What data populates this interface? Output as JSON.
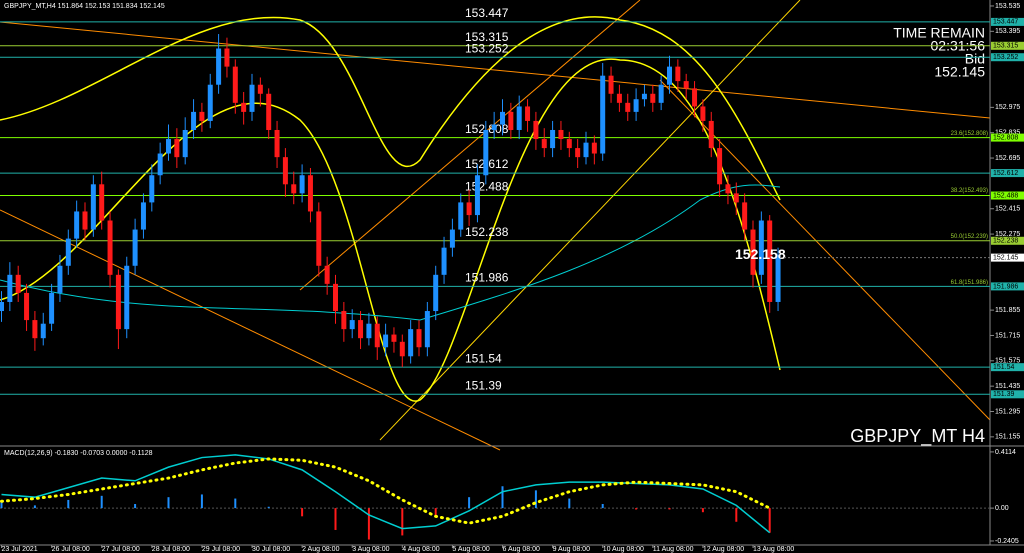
{
  "chart_data": {
    "type": "candlestick",
    "title": "GBPJPY_MT,H4  151.864 152.153 151.834 152.145",
    "watermark": "GBPJPY_MT H4",
    "up_color": "#1e90ff",
    "down_color": "#ff1a1a",
    "open": [
      151.85,
      151.9,
      152.05,
      151.95,
      151.8,
      151.7,
      151.78,
      151.95,
      152.1,
      152.25,
      152.4,
      152.3,
      152.55,
      152.35,
      152.05,
      151.75,
      152.1,
      152.3,
      152.45,
      152.6,
      152.72,
      152.8,
      152.7,
      152.85,
      152.95,
      152.9,
      153.1,
      153.3,
      153.2,
      153.0,
      152.95,
      153.1,
      153.05,
      152.85,
      152.7,
      152.55,
      152.5,
      152.6,
      152.4,
      152.1,
      152.0,
      151.85,
      151.75,
      151.8,
      151.7,
      151.78,
      151.65,
      151.72,
      151.68,
      151.6,
      151.75,
      151.65,
      151.85,
      152.05,
      152.2,
      152.3,
      152.45,
      152.38,
      152.6,
      152.85,
      152.88,
      152.95,
      152.85,
      152.98,
      152.9,
      152.8,
      152.75,
      152.85,
      152.8,
      152.75,
      152.7,
      152.78,
      152.72,
      153.15,
      153.05,
      153.0,
      152.95,
      153.02,
      153.05,
      153.0,
      153.1,
      153.2,
      153.12,
      153.08,
      152.98,
      152.9,
      152.75,
      152.55,
      152.5,
      152.45,
      152.3,
      152.05,
      152.35,
      151.9
    ],
    "high": [
      151.96,
      152.12,
      152.1,
      152.0,
      151.85,
      151.84,
      152.0,
      152.16,
      152.3,
      152.46,
      152.45,
      152.6,
      152.62,
      152.4,
      152.08,
      152.15,
      152.36,
      152.5,
      152.66,
      152.78,
      152.88,
      152.86,
      152.92,
      153.02,
      153.0,
      153.16,
      153.38,
      153.36,
      153.24,
      153.06,
      153.16,
      153.14,
      153.08,
      152.9,
      152.75,
      152.62,
      152.66,
      152.64,
      152.45,
      152.15,
      152.05,
      151.9,
      151.86,
      151.85,
      151.84,
      151.82,
      151.78,
      151.76,
      151.72,
      151.8,
      151.8,
      151.9,
      152.1,
      152.26,
      152.36,
      152.5,
      152.52,
      152.66,
      152.9,
      152.95,
      153.02,
      153.0,
      153.04,
      153.02,
      152.95,
      152.86,
      152.9,
      152.9,
      152.84,
      152.8,
      152.84,
      152.82,
      153.22,
      153.2,
      153.1,
      153.05,
      153.08,
      153.1,
      153.1,
      153.15,
      153.26,
      153.24,
      153.16,
      153.12,
      153.02,
      152.95,
      152.8,
      152.6,
      152.56,
      152.5,
      152.35,
      152.4,
      152.38,
      152.2
    ],
    "low": [
      151.79,
      151.85,
      151.9,
      151.74,
      151.63,
      151.66,
      151.74,
      151.9,
      152.05,
      152.2,
      152.24,
      152.26,
      152.3,
      151.98,
      151.64,
      151.7,
      152.05,
      152.25,
      152.4,
      152.55,
      152.68,
      152.64,
      152.66,
      152.8,
      152.84,
      152.86,
      153.05,
      153.14,
      152.94,
      152.88,
      152.9,
      152.98,
      152.8,
      152.64,
      152.48,
      152.44,
      152.45,
      152.34,
      152.04,
      151.94,
      151.78,
      151.68,
      151.7,
      151.64,
      151.66,
      151.58,
      151.6,
      151.62,
      151.54,
      151.56,
      151.6,
      151.6,
      151.8,
      152.0,
      152.15,
      152.26,
      152.32,
      152.34,
      152.55,
      152.8,
      152.82,
      152.8,
      152.8,
      152.84,
      152.74,
      152.7,
      152.7,
      152.74,
      152.7,
      152.64,
      152.66,
      152.66,
      152.68,
      153.0,
      152.95,
      152.9,
      152.9,
      152.98,
      152.95,
      152.96,
      153.05,
      153.06,
      153.02,
      152.92,
      152.84,
      152.7,
      152.48,
      152.44,
      152.38,
      152.24,
      151.98,
      152.0,
      151.84,
      151.85
    ],
    "close": [
      151.9,
      152.05,
      151.95,
      151.8,
      151.7,
      151.78,
      151.95,
      152.1,
      152.25,
      152.4,
      152.3,
      152.55,
      152.35,
      152.05,
      151.75,
      152.1,
      152.3,
      152.45,
      152.6,
      152.72,
      152.8,
      152.7,
      152.85,
      152.95,
      152.9,
      153.1,
      153.3,
      153.2,
      153.0,
      152.95,
      153.1,
      153.05,
      152.85,
      152.7,
      152.55,
      152.5,
      152.6,
      152.4,
      152.1,
      152.0,
      151.85,
      151.75,
      151.8,
      151.7,
      151.78,
      151.65,
      151.72,
      151.68,
      151.6,
      151.75,
      151.65,
      151.85,
      152.05,
      152.2,
      152.3,
      152.45,
      152.38,
      152.6,
      152.85,
      152.88,
      152.95,
      152.85,
      152.98,
      152.9,
      152.8,
      152.75,
      152.85,
      152.8,
      152.75,
      152.7,
      152.78,
      152.72,
      153.15,
      153.05,
      153.0,
      152.95,
      153.02,
      153.05,
      153.0,
      153.1,
      153.2,
      153.12,
      153.08,
      152.98,
      152.9,
      152.75,
      152.55,
      152.5,
      152.45,
      152.3,
      152.05,
      152.35,
      151.9,
      152.158
    ],
    "ylim": [
      151.11,
      153.568
    ],
    "yticks": [
      153.535,
      153.395,
      152.975,
      152.835,
      152.695,
      152.415,
      152.275,
      151.855,
      151.715,
      151.575,
      151.435,
      151.295,
      151.155
    ],
    "xticks": [
      {
        "value": 0,
        "label": "23 Jul 2021"
      },
      {
        "value": 6,
        "label": "26 Jul 08:00"
      },
      {
        "value": 12,
        "label": "27 Jul 08:00"
      },
      {
        "value": 18,
        "label": "28 Jul 08:00"
      },
      {
        "value": 24,
        "label": "29 Jul 08:00"
      },
      {
        "value": 30,
        "label": "30 Jul 08:00"
      },
      {
        "value": 36,
        "label": "2 Aug 08:00"
      },
      {
        "value": 42,
        "label": "3 Aug 08:00"
      },
      {
        "value": 48,
        "label": "4 Aug 08:00"
      },
      {
        "value": 54,
        "label": "5 Aug 08:00"
      },
      {
        "value": 60,
        "label": "6 Aug 08:00"
      },
      {
        "value": 66,
        "label": "9 Aug 08:00"
      },
      {
        "value": 72,
        "label": "10 Aug 08:00"
      },
      {
        "value": 78,
        "label": "11 Aug 08:00"
      },
      {
        "value": 84,
        "label": "12 Aug 08:00"
      },
      {
        "value": 90,
        "label": "13 Aug 08:00"
      }
    ],
    "levels": [
      153.447,
      153.315,
      153.252,
      152.808,
      152.612,
      152.488,
      152.238,
      151.986,
      151.54,
      151.39
    ],
    "level_colors": [
      "#20b2aa",
      "#9acd32",
      "#20b2aa",
      "#7fff00",
      "#20b2aa",
      "#7fff00",
      "#9acd32",
      "#20b2aa",
      "#20b2aa",
      "#20b2aa"
    ],
    "fib": [
      {
        "value": 152.808,
        "label": "23.6(152.808)"
      },
      {
        "value": 152.493,
        "label": "38.2(152.493)"
      },
      {
        "value": 152.239,
        "label": "50.0(152.239)"
      },
      {
        "value": 151.986,
        "label": "61.8(151.986)"
      }
    ],
    "price_label": 152.158,
    "time_remain_label": "TIME REMAIN",
    "time_remain": "02:31:56",
    "bid_label": "Bid",
    "bid": 152.145,
    "macd": {
      "label": "MACD(12,26,9) -0.1830 -0.0703 0.0000 -0.1128",
      "main_color": "#00ced1",
      "signal_color": "#ffff00",
      "x": [
        0,
        4,
        8,
        12,
        16,
        20,
        24,
        28,
        32,
        36,
        40,
        44,
        48,
        52,
        56,
        60,
        64,
        68,
        72,
        76,
        80,
        84,
        88,
        92
      ],
      "main": [
        0.1,
        0.08,
        0.15,
        0.22,
        0.2,
        0.3,
        0.37,
        0.39,
        0.36,
        0.28,
        0.12,
        -0.05,
        -0.15,
        -0.13,
        -0.02,
        0.12,
        0.17,
        0.19,
        0.19,
        0.18,
        0.17,
        0.14,
        0.02,
        -0.18
      ],
      "signal": [
        0.05,
        0.07,
        0.1,
        0.14,
        0.18,
        0.22,
        0.28,
        0.33,
        0.36,
        0.35,
        0.3,
        0.2,
        0.06,
        -0.06,
        -0.11,
        -0.06,
        0.04,
        0.12,
        0.17,
        0.19,
        0.18,
        0.17,
        0.12,
        0.0
      ],
      "hist": [
        0.05,
        0.02,
        0.06,
        0.09,
        0.03,
        0.08,
        0.1,
        0.07,
        0.01,
        -0.06,
        -0.16,
        -0.23,
        -0.2,
        -0.07,
        0.08,
        0.16,
        0.13,
        0.07,
        0.03,
        -0.01,
        -0.01,
        -0.03,
        -0.1,
        -0.18
      ],
      "ylim": [
        -0.27,
        0.44
      ],
      "yticks": [
        0.4114,
        {
          "value": 0,
          "label": "0.00"
        },
        -0.2405
      ]
    }
  }
}
